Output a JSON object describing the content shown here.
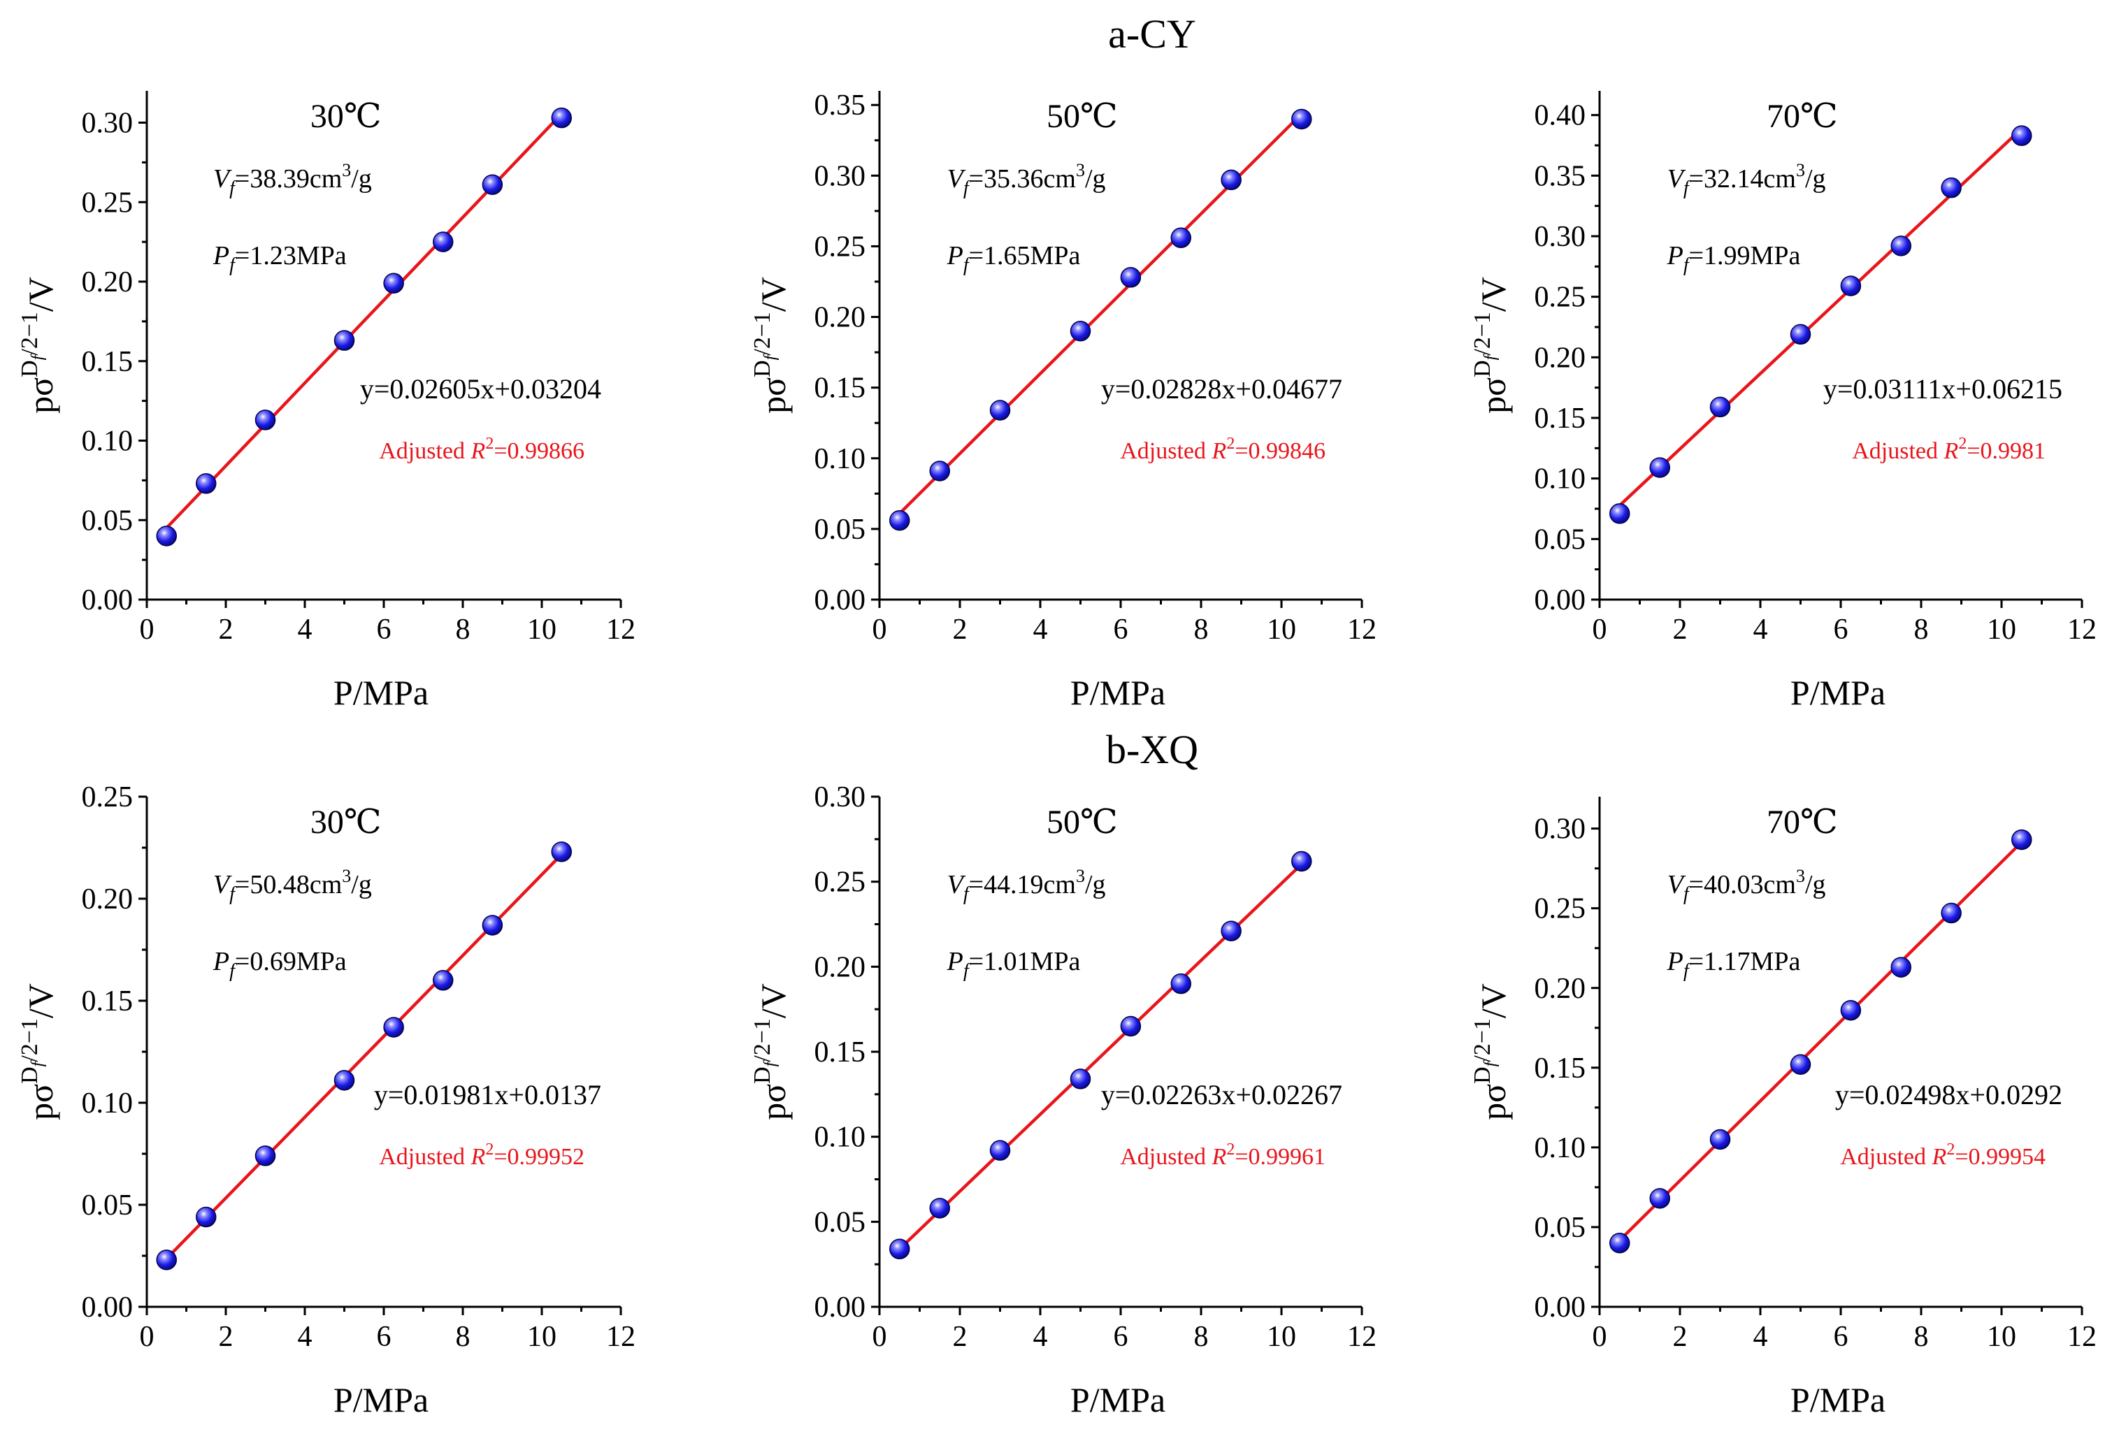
{
  "figure": {
    "row_titles": [
      "a-CY",
      "b-XQ"
    ]
  },
  "colors": {
    "fit_line": "#e8151b",
    "marker_fill": "#1a1ae6",
    "axis": "#000000"
  },
  "chart_data": [
    {
      "type": "scatter",
      "group": "a-CY",
      "title": "30℃",
      "xlabel": "P/MPa",
      "ylabel": "pσ^(Df/2−1)/V",
      "xlim": [
        0,
        12
      ],
      "ylim": [
        0,
        0.32
      ],
      "xticks": [
        "0",
        "2",
        "4",
        "6",
        "8",
        "10",
        "12"
      ],
      "yticks": [
        "0.00",
        "0.05",
        "0.10",
        "0.15",
        "0.20",
        "0.25",
        "0.30"
      ],
      "x": [
        0.5,
        1.5,
        3.0,
        5.0,
        6.25,
        7.5,
        8.75,
        10.5
      ],
      "y": [
        0.04,
        0.073,
        0.113,
        0.163,
        0.199,
        0.225,
        0.261,
        0.303
      ],
      "fit": {
        "slope": 0.02605,
        "intercept": 0.03204
      },
      "annotations": {
        "vf": "=38.39cm",
        "pf": "=1.23MPa",
        "equation": "y=0.02605x+0.03204",
        "r2": "=0.99866"
      }
    },
    {
      "type": "scatter",
      "group": "a-CY",
      "title": "50℃",
      "xlabel": "P/MPa",
      "ylabel": "pσ^(Df/2−1)/V",
      "xlim": [
        0,
        12
      ],
      "ylim": [
        0,
        0.36
      ],
      "xticks": [
        "0",
        "2",
        "4",
        "6",
        "8",
        "10",
        "12"
      ],
      "yticks": [
        "0.00",
        "0.05",
        "0.10",
        "0.15",
        "0.20",
        "0.25",
        "0.30",
        "0.35"
      ],
      "x": [
        0.5,
        1.5,
        3.0,
        5.0,
        6.25,
        7.5,
        8.75,
        10.5
      ],
      "y": [
        0.056,
        0.091,
        0.134,
        0.19,
        0.228,
        0.256,
        0.297,
        0.34
      ],
      "fit": {
        "slope": 0.02828,
        "intercept": 0.04677
      },
      "annotations": {
        "vf": "=35.36cm",
        "pf": "=1.65MPa",
        "equation": "y=0.02828x+0.04677",
        "r2": "=0.99846"
      }
    },
    {
      "type": "scatter",
      "group": "a-CY",
      "title": "70℃",
      "xlabel": "P/MPa",
      "ylabel": "pσ^(Df/2−1)/V",
      "xlim": [
        0,
        12
      ],
      "ylim": [
        0,
        0.42
      ],
      "xticks": [
        "0",
        "2",
        "4",
        "6",
        "8",
        "10",
        "12"
      ],
      "yticks": [
        "0.00",
        "0.05",
        "0.10",
        "0.15",
        "0.20",
        "0.25",
        "0.30",
        "0.35",
        "0.40"
      ],
      "x": [
        0.5,
        1.5,
        3.0,
        5.0,
        6.25,
        7.5,
        8.75,
        10.5
      ],
      "y": [
        0.071,
        0.109,
        0.159,
        0.219,
        0.259,
        0.292,
        0.34,
        0.383
      ],
      "fit": {
        "slope": 0.03111,
        "intercept": 0.06215
      },
      "annotations": {
        "vf": "=32.14cm",
        "pf": "=1.99MPa",
        "equation": "y=0.03111x+0.06215",
        "r2": "=0.9981"
      }
    },
    {
      "type": "scatter",
      "group": "b-XQ",
      "title": "30℃",
      "xlabel": "P/MPa",
      "ylabel": "pσ^(Df/2−1)/V",
      "xlim": [
        0,
        12
      ],
      "ylim": [
        0,
        0.25
      ],
      "xticks": [
        "0",
        "2",
        "4",
        "6",
        "8",
        "10",
        "12"
      ],
      "yticks": [
        "0.00",
        "0.05",
        "0.10",
        "0.15",
        "0.20",
        "0.25"
      ],
      "x": [
        0.5,
        1.5,
        3.0,
        5.0,
        6.25,
        7.5,
        8.75,
        10.5
      ],
      "y": [
        0.023,
        0.044,
        0.074,
        0.111,
        0.137,
        0.16,
        0.187,
        0.223
      ],
      "fit": {
        "slope": 0.01981,
        "intercept": 0.0137
      },
      "annotations": {
        "vf": "=50.48cm",
        "pf": "=0.69MPa",
        "equation": "y=0.01981x+0.0137",
        "r2": "=0.99952"
      }
    },
    {
      "type": "scatter",
      "group": "b-XQ",
      "title": "50℃",
      "xlabel": "P/MPa",
      "ylabel": "pσ^(Df/2−1)/V",
      "xlim": [
        0,
        12
      ],
      "ylim": [
        0,
        0.3
      ],
      "xticks": [
        "0",
        "2",
        "4",
        "6",
        "8",
        "10",
        "12"
      ],
      "yticks": [
        "0.00",
        "0.05",
        "0.10",
        "0.15",
        "0.20",
        "0.25",
        "0.30"
      ],
      "x": [
        0.5,
        1.5,
        3.0,
        5.0,
        6.25,
        7.5,
        8.75,
        10.5
      ],
      "y": [
        0.034,
        0.058,
        0.092,
        0.134,
        0.165,
        0.19,
        0.221,
        0.262
      ],
      "fit": {
        "slope": 0.02263,
        "intercept": 0.02267
      },
      "annotations": {
        "vf": "=44.19cm",
        "pf": "=1.01MPa",
        "equation": "y=0.02263x+0.02267",
        "r2": "=0.99961"
      }
    },
    {
      "type": "scatter",
      "group": "b-XQ",
      "title": "70℃",
      "xlabel": "P/MPa",
      "ylabel": "pσ^(Df/2−1)/V",
      "xlim": [
        0,
        12
      ],
      "ylim": [
        0,
        0.32
      ],
      "xticks": [
        "0",
        "2",
        "4",
        "6",
        "8",
        "10",
        "12"
      ],
      "yticks": [
        "0.00",
        "0.05",
        "0.10",
        "0.15",
        "0.20",
        "0.25",
        "0.30"
      ],
      "x": [
        0.5,
        1.5,
        3.0,
        5.0,
        6.25,
        7.5,
        8.75,
        10.5
      ],
      "y": [
        0.04,
        0.068,
        0.105,
        0.152,
        0.186,
        0.213,
        0.247,
        0.293
      ],
      "fit": {
        "slope": 0.02498,
        "intercept": 0.0292
      },
      "annotations": {
        "vf": "=40.03cm",
        "pf": "=1.17MPa",
        "equation": "y=0.02498x+0.0292",
        "r2": "=0.99954"
      }
    }
  ]
}
